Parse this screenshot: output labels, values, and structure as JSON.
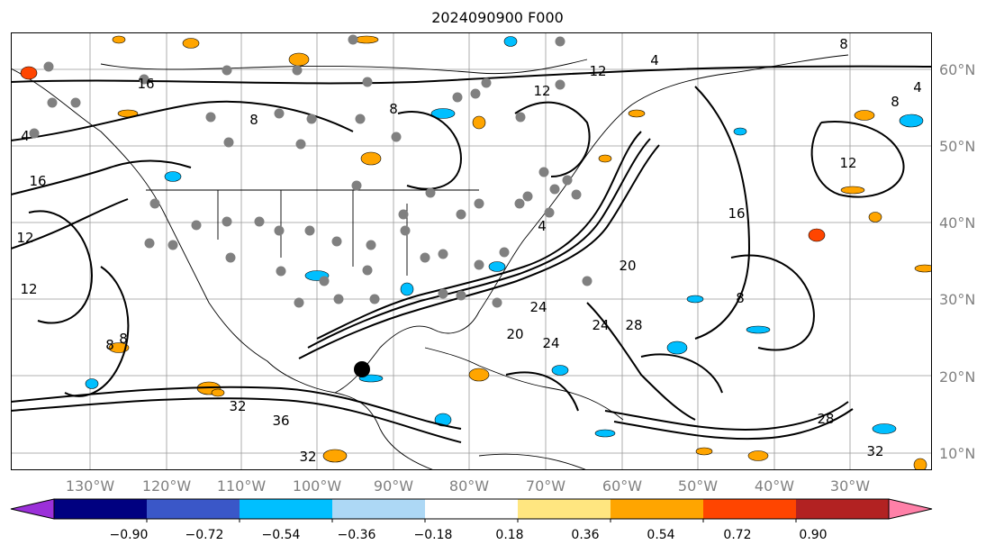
{
  "title": "2024090900 F000",
  "lat_labels": [
    "60°N",
    "50°N",
    "40°N",
    "30°N",
    "20°N",
    "10°N"
  ],
  "lon_labels": [
    "130°W",
    "120°W",
    "110°W",
    "100°W",
    "90°W",
    "80°W",
    "70°W",
    "60°W",
    "50°W",
    "40°W",
    "30°W"
  ],
  "contour_labels": [
    "4",
    "4",
    "8",
    "12",
    "16",
    "16",
    "8",
    "4",
    "12",
    "8",
    "12",
    "12",
    "8",
    "8",
    "24",
    "20",
    "24",
    "28",
    "32",
    "32",
    "36",
    "32",
    "28",
    "24",
    "16",
    "20",
    "4",
    "8",
    "12",
    "8"
  ],
  "colorbar": {
    "colors": [
      "#9b30d9",
      "#000080",
      "#3a57c8",
      "#00bfff",
      "#add8f5",
      "#ffffff",
      "#ffe680",
      "#ffa500",
      "#ff4500",
      "#b22222",
      "#ff80a8"
    ],
    "ticks": [
      "−0.90",
      "−0.72",
      "−0.54",
      "−0.36",
      "−0.18",
      "0.18",
      "0.36",
      "0.54",
      "0.72",
      "0.90"
    ]
  }
}
